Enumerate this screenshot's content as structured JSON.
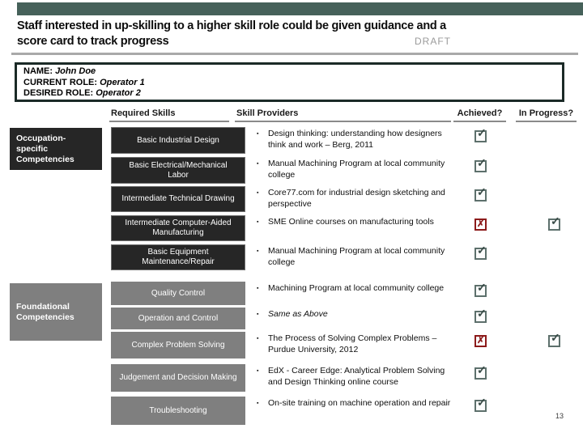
{
  "slide": {
    "title_line1": "Staff interested in up-skilling to a higher skill role could be given guidance and a",
    "title_line2": "score card to track progress",
    "draft_label": "DRAFT",
    "page_number": "13"
  },
  "profile": {
    "name_label": "NAME:",
    "name_value": "John Doe",
    "current_role_label": "CURRENT ROLE:",
    "current_role_value": "Operator 1",
    "desired_role_label": "DESIRED ROLE:",
    "desired_role_value": "Operator 2"
  },
  "table": {
    "bullet_char": "▪",
    "headers": {
      "required_skills": "Required Skills",
      "skill_providers": "Skill Providers",
      "achieved": "Achieved?",
      "in_progress": "In Progress?"
    },
    "categories": [
      {
        "label": "Occupation-specific Competencies"
      },
      {
        "label": "Foundational Competencies"
      }
    ],
    "rows": [
      {
        "section": "occupation-specific",
        "skill": "Basic Industrial Design",
        "provider": "Design thinking: understanding how designers think and work – Berg, 2011",
        "achieved": "check"
      },
      {
        "section": "occupation-specific",
        "skill": "Basic Electrical/Mechanical Labor",
        "provider": "Manual Machining Program at local community college",
        "achieved": "check"
      },
      {
        "section": "occupation-specific",
        "skill": "Intermediate Technical Drawing",
        "provider": "Core77.com for industrial design sketching and perspective",
        "achieved": "check"
      },
      {
        "section": "occupation-specific",
        "skill": "Intermediate Computer-Aided Manufacturing",
        "provider": "SME Online courses on manufacturing tools",
        "achieved": "x",
        "in_progress": "check"
      },
      {
        "section": "occupation-specific",
        "skill": "Basic Equipment Maintenance/Repair",
        "provider": "Manual Machining Program at local community college",
        "achieved": "check"
      },
      {
        "section": "foundational",
        "skill": "Quality Control",
        "provider": "Machining Program at local community college",
        "achieved": "check"
      },
      {
        "section": "foundational",
        "skill": "Operation and Control",
        "provider": "Same as Above",
        "provider_italic": true,
        "achieved": "check"
      },
      {
        "section": "foundational",
        "skill": "Complex Problem Solving",
        "provider": "The Process of Solving Complex Problems – Purdue University, 2012",
        "achieved": "x",
        "in_progress": "check"
      },
      {
        "section": "foundational",
        "skill": "Judgement and Decision Making",
        "provider": "EdX - Career Edge: Analytical Problem Solving and Design Thinking online course",
        "achieved": "check"
      },
      {
        "section": "foundational",
        "skill": "Troubleshooting",
        "provider": "On-site training on machine operation and repair",
        "achieved": "check"
      }
    ]
  },
  "colors": {
    "topbar": "#46615a",
    "dark_box": "#262626",
    "gray_box": "#7f7f7f",
    "box_border": "#1b2a27",
    "check_border": "#5d706c",
    "check_mark": "#394b47",
    "x_color": "#8c1a1a",
    "draft": "#9b9b9b"
  }
}
